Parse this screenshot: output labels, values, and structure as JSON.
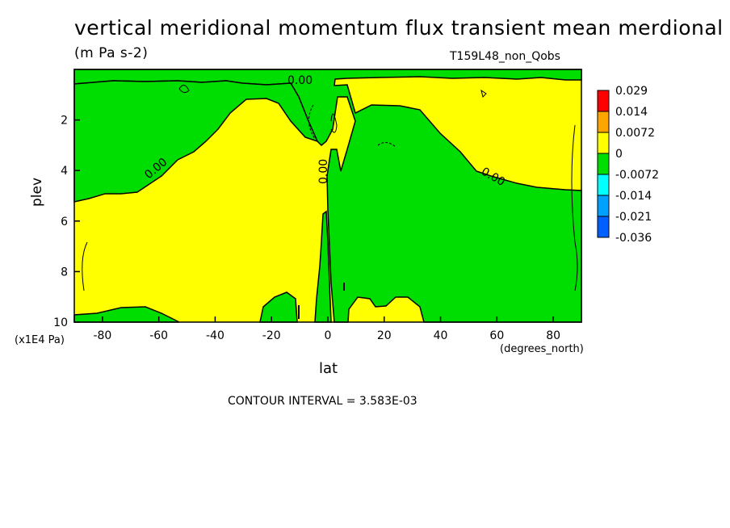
{
  "chart_data": {
    "type": "heatmap",
    "title": "vertical meridional momentum flux transient mean merdional",
    "units": "(m Pa s-2)",
    "dataset": "T159L48_non_Qobs",
    "xlabel": "lat",
    "x_units": "(degrees_north)",
    "ylabel": "plev",
    "y_units": "(x1E4 Pa)",
    "xlim": [
      -90,
      90
    ],
    "ylim": [
      10,
      0
    ],
    "x_ticks": [
      -80,
      -60,
      -40,
      -20,
      0,
      20,
      40,
      60,
      80
    ],
    "x_tick_labels": [
      "-80",
      "-60",
      "-40",
      "-20",
      "0",
      "20",
      "40",
      "60",
      "80"
    ],
    "y_ticks": [
      2,
      4,
      6,
      8,
      10
    ],
    "y_tick_labels": [
      "2",
      "4",
      "6",
      "8",
      "10"
    ],
    "contour_interval": "CONTOUR INTERVAL = 3.583E-03",
    "contour_labels": [
      "0.00",
      "0.00",
      "0.00",
      "0.00"
    ],
    "legend": {
      "placement": "right",
      "labels": [
        "0.029",
        "0.014",
        "0.0072",
        "0",
        "-0.0072",
        "-0.014",
        "-0.021",
        "-0.036"
      ],
      "colors": [
        "#ff0000",
        "#ffa500",
        "#ffff00",
        "#00dd00",
        "#00ffff",
        "#00a0ff",
        "#0060ff"
      ]
    },
    "regions": [
      {
        "sign": "positive",
        "color": "#ffff00",
        "description": "southern hemisphere interior and northern polar margin"
      },
      {
        "sign": "negative",
        "color": "#00dd00",
        "description": "upper levels, northern tropics and midlatitudes"
      }
    ]
  }
}
